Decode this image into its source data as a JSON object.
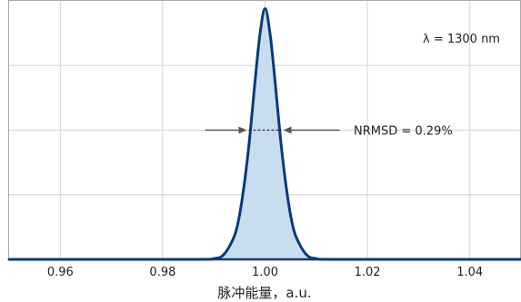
{
  "chart_data": {
    "type": "area",
    "title": "",
    "xlabel": "脉冲能量，a.u.",
    "ylabel": "",
    "xlim": [
      0.95,
      1.05
    ],
    "ylim": [
      0,
      1.0
    ],
    "grid": true,
    "legend": "none",
    "x_ticks": [
      0.96,
      0.98,
      1.0,
      1.02,
      1.04
    ],
    "x_tick_labels": [
      "0.96",
      "0.98",
      "1.00",
      "1.02",
      "1.04"
    ],
    "y_gridlines": [
      0.25,
      0.5,
      0.75
    ],
    "series": [
      {
        "x": [
          0.95,
          0.985,
          0.99,
          0.992,
          0.994,
          0.995,
          0.996,
          0.997,
          0.998,
          0.999,
          1.0,
          1.001,
          1.002,
          1.003,
          1.004,
          1.005,
          1.006,
          1.008,
          1.01,
          1.015,
          1.05
        ],
        "y": [
          0.0,
          0.0,
          0.003,
          0.02,
          0.09,
          0.17,
          0.3,
          0.47,
          0.68,
          0.87,
          0.97,
          0.87,
          0.68,
          0.47,
          0.3,
          0.17,
          0.09,
          0.02,
          0.003,
          0.0,
          0.0
        ]
      }
    ],
    "annotations": {
      "wavelength": "λ = 1300 nm",
      "width_label": "NRMSD = 0.29%",
      "width_left": 0.9968,
      "width_right": 1.0032,
      "width_level": 0.5
    }
  },
  "colors": {
    "curve": "#0b3a78",
    "fill": "#c9ddf0",
    "grid": "#d4d4d4",
    "frame": "#aaaaaa",
    "axis": "#0b3a78",
    "arrow": "#555555"
  }
}
